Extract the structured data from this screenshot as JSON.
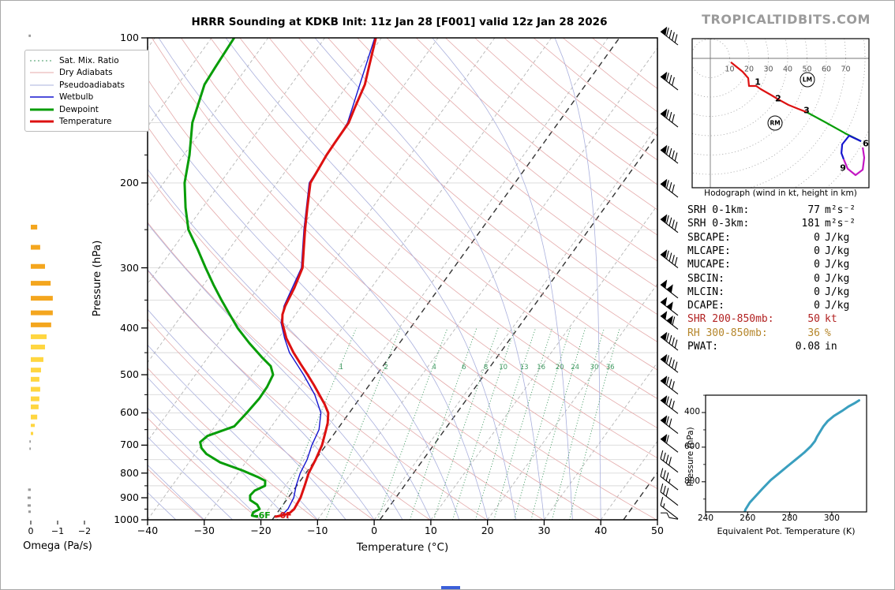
{
  "watermark": "TROPICALTIDBITS.COM",
  "colors": {
    "temperature": "#dd1111",
    "dewpoint": "#089d08",
    "wetbulb": "#1515cf",
    "mix_ratio": "#3f9960",
    "dry_adiabat": "#e4aaaa",
    "pseudoadiabat": "#aab0dd",
    "isotherm": "#b5b5b5",
    "ref_isotherm": "#333333",
    "grid": "#d9d9d9",
    "omega_up_strong": "#f4a61e",
    "omega_up_weak": "#ffd640",
    "omega_down": "#999999",
    "hodo_0_3": "#dd1111",
    "hodo_3_6": "#089d08",
    "hodo_6_9": "#1515cf",
    "hodo_9_12": "#c317c3",
    "thetae": "#3a9fbf",
    "barb": "#000000",
    "footer_strip": "#3b5fd9",
    "shr_text": "#b22222",
    "rh_text": "#b5862b"
  },
  "legend": {
    "items": [
      {
        "label": "Sat. Mix. Ratio",
        "color": "#3f9960",
        "width": 1,
        "dash": "2,3"
      },
      {
        "label": "Dry Adiabats",
        "color": "#e4aaaa",
        "width": 1,
        "dash": ""
      },
      {
        "label": "Pseudoadiabats",
        "color": "#aab0dd",
        "width": 1,
        "dash": ""
      },
      {
        "label": "Wetbulb",
        "color": "#1515cf",
        "width": 1.6,
        "dash": ""
      },
      {
        "label": "Dewpoint",
        "color": "#089d08",
        "width": 3,
        "dash": ""
      },
      {
        "label": "Temperature",
        "color": "#dd1111",
        "width": 3,
        "dash": ""
      }
    ]
  },
  "stats": {
    "rows": [
      {
        "label": "SRH 0-1km:",
        "value": "77",
        "unit": "m²s⁻²",
        "color": "#000000"
      },
      {
        "label": "SRH 0-3km:",
        "value": "181",
        "unit": "m²s⁻²",
        "color": "#000000"
      },
      {
        "label": "SBCAPE:",
        "value": "0",
        "unit": "J/kg",
        "color": "#000000"
      },
      {
        "label": "MLCAPE:",
        "value": "0",
        "unit": "J/kg",
        "color": "#000000"
      },
      {
        "label": "MUCAPE:",
        "value": "0",
        "unit": "J/kg",
        "color": "#000000"
      },
      {
        "label": "SBCIN:",
        "value": "0",
        "unit": "J/kg",
        "color": "#000000"
      },
      {
        "label": "MLCIN:",
        "value": "0",
        "unit": "J/kg",
        "color": "#000000"
      },
      {
        "label": "DCAPE:",
        "value": "0",
        "unit": "J/kg",
        "color": "#000000"
      },
      {
        "label": "SHR 200-850mb:",
        "value": "50",
        "unit": "kt",
        "color": "#b22222"
      },
      {
        "label": "RH 300-850mb:",
        "value": "36",
        "unit": "%",
        "color": "#b5862b"
      },
      {
        "label": "PWAT:",
        "value": "0.08",
        "unit": "in",
        "color": "#000000"
      }
    ]
  },
  "chart_data": [
    {
      "type": "line",
      "id": "skewt",
      "title": "HRRR Sounding at KDKB Init: 11z Jan 28 [F001] valid 12z Jan 28 2026",
      "xlabel": "Temperature (°C)",
      "ylabel": "Pressure (hPa)",
      "x_range_c": [
        -40,
        50
      ],
      "pressure_range_hpa": [
        100,
        1000
      ],
      "pressure_ticks": [
        100,
        200,
        300,
        400,
        500,
        600,
        700,
        800,
        900,
        1000
      ],
      "pressure_minor_ticks": [
        125,
        150,
        175,
        250,
        350,
        450,
        550,
        650,
        750,
        850,
        950
      ],
      "temp_ticks": [
        "−40",
        "−30",
        "−20",
        "−10",
        "0",
        "10",
        "20",
        "30",
        "40",
        "50"
      ],
      "isotherm_step_c": 10,
      "ref_isotherms_c": [
        -18,
        1,
        44
      ],
      "mixing_ratio_lines_gkg": [
        1,
        2,
        4,
        6,
        8,
        10,
        13,
        16,
        20,
        24,
        30,
        36
      ],
      "surface_annotations": [
        {
          "text": "-6F",
          "series": "Dewpoint",
          "color": "#089d08"
        },
        {
          "text": "-0F",
          "series": "Temperature",
          "color": "#dd1111"
        }
      ],
      "series": [
        {
          "name": "Temperature",
          "color": "#dd1111",
          "width": 3,
          "points": [
            [
              100,
              -61
            ],
            [
              115,
              -58.5
            ],
            [
              125,
              -57
            ],
            [
              140,
              -55.8
            ],
            [
              150,
              -55
            ],
            [
              165,
              -54.9
            ],
            [
              175,
              -54.8
            ],
            [
              200,
              -54.1
            ],
            [
              225,
              -51.5
            ],
            [
              250,
              -49.1
            ],
            [
              275,
              -46.8
            ],
            [
              300,
              -44.7
            ],
            [
              330,
              -43.6
            ],
            [
              360,
              -42.9
            ],
            [
              375,
              -42.3
            ],
            [
              390,
              -41.3
            ],
            [
              420,
              -38.6
            ],
            [
              450,
              -35.5
            ],
            [
              475,
              -32.8
            ],
            [
              500,
              -30.2
            ],
            [
              525,
              -27.8
            ],
            [
              550,
              -25.6
            ],
            [
              575,
              -23.5
            ],
            [
              600,
              -21.7
            ],
            [
              630,
              -20.5
            ],
            [
              660,
              -19.7
            ],
            [
              700,
              -18.7
            ],
            [
              750,
              -18
            ],
            [
              800,
              -17.5
            ],
            [
              850,
              -16.6
            ],
            [
              900,
              -15.8
            ],
            [
              950,
              -15.5
            ],
            [
              970,
              -15.8
            ],
            [
              980,
              -16.9
            ],
            [
              985,
              -17.8
            ]
          ]
        },
        {
          "name": "Dewpoint",
          "color": "#089d08",
          "width": 3,
          "points": [
            [
              100,
              -86
            ],
            [
              115,
              -85.6
            ],
            [
              125,
              -85.3
            ],
            [
              150,
              -82.6
            ],
            [
              175,
              -79
            ],
            [
              200,
              -76.3
            ],
            [
              225,
              -73
            ],
            [
              250,
              -69.7
            ],
            [
              275,
              -65.5
            ],
            [
              300,
              -61.8
            ],
            [
              325,
              -58.3
            ],
            [
              350,
              -54.9
            ],
            [
              375,
              -51.6
            ],
            [
              400,
              -48.5
            ],
            [
              430,
              -44.5
            ],
            [
              460,
              -40.5
            ],
            [
              480,
              -37.8
            ],
            [
              500,
              -36.3
            ],
            [
              530,
              -35.8
            ],
            [
              560,
              -35.7
            ],
            [
              600,
              -36.1
            ],
            [
              640,
              -36.6
            ],
            [
              670,
              -40.1
            ],
            [
              690,
              -40.6
            ],
            [
              710,
              -39.6
            ],
            [
              730,
              -38
            ],
            [
              760,
              -34.5
            ],
            [
              790,
              -29.5
            ],
            [
              815,
              -26
            ],
            [
              830,
              -24.2
            ],
            [
              850,
              -23.6
            ],
            [
              870,
              -24.8
            ],
            [
              890,
              -25
            ],
            [
              910,
              -24.4
            ],
            [
              930,
              -22.6
            ],
            [
              950,
              -21.6
            ],
            [
              965,
              -22.3
            ],
            [
              980,
              -22.1
            ],
            [
              985,
              -21.1
            ]
          ]
        },
        {
          "name": "Wetbulb",
          "color": "#1515cf",
          "width": 1.4,
          "points": [
            [
              100,
              -61.2
            ],
            [
              150,
              -55.2
            ],
            [
              200,
              -54.3
            ],
            [
              250,
              -49.3
            ],
            [
              300,
              -44.9
            ],
            [
              360,
              -43.1
            ],
            [
              390,
              -41.5
            ],
            [
              420,
              -38.9
            ],
            [
              450,
              -36.2
            ],
            [
              500,
              -30.9
            ],
            [
              550,
              -26.4
            ],
            [
              600,
              -23
            ],
            [
              650,
              -21.2
            ],
            [
              700,
              -20.5
            ],
            [
              750,
              -19.5
            ],
            [
              800,
              -19
            ],
            [
              850,
              -18.1
            ],
            [
              900,
              -17
            ],
            [
              950,
              -16.6
            ],
            [
              980,
              -16.9
            ],
            [
              985,
              -17.4
            ]
          ]
        }
      ]
    },
    {
      "type": "line",
      "id": "hodograph",
      "caption": "Hodograph (wind in kt, height in km)",
      "ring_step_kt": 10,
      "ring_labels": [
        "10",
        "20",
        "30",
        "40",
        "50",
        "60",
        "70"
      ],
      "segments": [
        {
          "name": "0-3km",
          "color": "#dd1111",
          "points_uv_kt": [
            [
              10.6,
              -2
            ],
            [
              16.7,
              -6.9
            ],
            [
              19.6,
              -10.2
            ],
            [
              20,
              -14.3
            ],
            [
              23.7,
              -14.3
            ],
            [
              26.1,
              -15.9
            ],
            [
              31.8,
              -19.2
            ],
            [
              35.1,
              -21.2
            ],
            [
              40.4,
              -24.1
            ],
            [
              45.3,
              -26.1
            ],
            [
              49.8,
              -27.8
            ]
          ]
        },
        {
          "name": "3-6km",
          "color": "#089d08",
          "points_uv_kt": [
            [
              49.8,
              -27.8
            ],
            [
              59.6,
              -33.1
            ],
            [
              69.8,
              -38.8
            ],
            [
              78,
              -42.9
            ]
          ]
        },
        {
          "name": "6-9km",
          "color": "#1515cf",
          "points_uv_kt": [
            [
              78,
              -42.9
            ],
            [
              71.8,
              -40
            ],
            [
              68.2,
              -44.5
            ],
            [
              67.8,
              -49
            ],
            [
              69,
              -52.2
            ]
          ]
        },
        {
          "name": "9-12km",
          "color": "#c317c3",
          "points_uv_kt": [
            [
              69,
              -52.2
            ],
            [
              71,
              -57.1
            ],
            [
              75.1,
              -60.4
            ],
            [
              78.8,
              -57.6
            ],
            [
              79.6,
              -51.4
            ],
            [
              78.8,
              -46.1
            ]
          ]
        }
      ],
      "height_labels": [
        {
          "text": "1",
          "u": 24.5,
          "v": -12.2
        },
        {
          "text": "2",
          "u": 35.1,
          "v": -20.8
        },
        {
          "text": "3",
          "u": 49.8,
          "v": -26.9
        },
        {
          "text": "6",
          "u": 80.4,
          "v": -44.1
        },
        {
          "text": "9",
          "u": 68.6,
          "v": -56.7
        }
      ],
      "markers": [
        {
          "text": "LM",
          "u": 50.2,
          "v": -11
        },
        {
          "text": "RM",
          "u": 33.5,
          "v": -33.5
        }
      ]
    },
    {
      "type": "bar",
      "id": "omega",
      "xlabel": "Omega (Pa/s)",
      "tick_labels": [
        "0",
        "−1",
        "−2"
      ],
      "tick_values": [
        0,
        -1,
        -2
      ],
      "bars": [
        {
          "p": 99,
          "omega": 0.08
        },
        {
          "p": 145,
          "omega": 0.08
        },
        {
          "p": 247,
          "omega": -0.24
        },
        {
          "p": 272,
          "omega": -0.35
        },
        {
          "p": 298,
          "omega": -0.53
        },
        {
          "p": 323,
          "omega": -0.74
        },
        {
          "p": 347,
          "omega": -0.82
        },
        {
          "p": 372,
          "omega": -0.82
        },
        {
          "p": 394,
          "omega": -0.76
        },
        {
          "p": 417,
          "omega": -0.59
        },
        {
          "p": 438,
          "omega": -0.53
        },
        {
          "p": 465,
          "omega": -0.47
        },
        {
          "p": 489,
          "omega": -0.38
        },
        {
          "p": 511,
          "omega": -0.32
        },
        {
          "p": 536,
          "omega": -0.35
        },
        {
          "p": 561,
          "omega": -0.32
        },
        {
          "p": 583,
          "omega": -0.29
        },
        {
          "p": 612,
          "omega": -0.24
        },
        {
          "p": 637,
          "omega": -0.15
        },
        {
          "p": 662,
          "omega": -0.09
        },
        {
          "p": 688,
          "omega": 0.05
        },
        {
          "p": 712,
          "omega": 0.05
        },
        {
          "p": 866,
          "omega": 0.1
        },
        {
          "p": 900,
          "omega": 0.12
        },
        {
          "p": 934,
          "omega": 0.12
        },
        {
          "p": 962,
          "omega": 0.09
        }
      ]
    },
    {
      "type": "line",
      "id": "theta_e",
      "xlabel": "Equivalent Pot. Temperature (K)",
      "ylabel": "Pressure (hPa)",
      "xticks": [
        240,
        260,
        280,
        300
      ],
      "yticks": [
        400,
        600,
        800
      ],
      "yticks_minor": [
        300,
        500,
        700,
        900
      ],
      "color": "#3a9fbf",
      "points": [
        [
          258,
          995
        ],
        [
          259,
          960
        ],
        [
          261,
          920
        ],
        [
          264,
          880
        ],
        [
          267,
          840
        ],
        [
          271,
          790
        ],
        [
          275,
          750
        ],
        [
          279,
          710
        ],
        [
          283,
          670
        ],
        [
          287,
          630
        ],
        [
          290,
          595
        ],
        [
          292,
          565
        ],
        [
          293,
          540
        ],
        [
          294.5,
          510
        ],
        [
          296,
          480
        ],
        [
          298,
          450
        ],
        [
          301,
          420
        ],
        [
          305,
          390
        ],
        [
          308,
          365
        ],
        [
          311,
          345
        ],
        [
          313,
          330
        ]
      ]
    },
    {
      "type": "barbs",
      "id": "wind_barbs",
      "levels": [
        {
          "p": 100,
          "flags": 1,
          "full": 4,
          "half": 0
        },
        {
          "p": 124,
          "flags": 1,
          "full": 3,
          "half": 0
        },
        {
          "p": 148,
          "flags": 1,
          "full": 3,
          "half": 0
        },
        {
          "p": 176,
          "flags": 1,
          "full": 4,
          "half": 0
        },
        {
          "p": 207,
          "flags": 1,
          "full": 3,
          "half": 0
        },
        {
          "p": 245,
          "flags": 1,
          "full": 4,
          "half": 0
        },
        {
          "p": 290,
          "flags": 1,
          "full": 4,
          "half": 0
        },
        {
          "p": 335,
          "flags": 2,
          "full": 0,
          "half": 0
        },
        {
          "p": 364,
          "flags": 2,
          "full": 0,
          "half": 0
        },
        {
          "p": 389,
          "flags": 2,
          "full": 1,
          "half": 0
        },
        {
          "p": 430,
          "flags": 1,
          "full": 4,
          "half": 0
        },
        {
          "p": 478,
          "flags": 1,
          "full": 4,
          "half": 0
        },
        {
          "p": 530,
          "flags": 1,
          "full": 3,
          "half": 0
        },
        {
          "p": 582,
          "flags": 1,
          "full": 3,
          "half": 0
        },
        {
          "p": 640,
          "flags": 1,
          "full": 2,
          "half": 0
        },
        {
          "p": 700,
          "flags": 1,
          "full": 1,
          "half": 0
        },
        {
          "p": 770,
          "flags": 0,
          "full": 4,
          "half": 0
        },
        {
          "p": 838,
          "flags": 0,
          "full": 3,
          "half": 1
        },
        {
          "p": 902,
          "flags": 0,
          "full": 3,
          "half": 0
        },
        {
          "p": 962,
          "flags": 0,
          "full": 1,
          "half": 1
        },
        {
          "p": 990,
          "flags": 0,
          "full": 0,
          "half": 0,
          "calm": true
        }
      ]
    }
  ]
}
